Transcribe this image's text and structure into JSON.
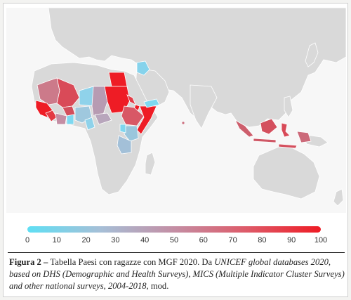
{
  "map": {
    "land_color": "#d9d9d9",
    "ocean_color": "#f7f7f7",
    "scale_low_color": "#5fdff4",
    "scale_high_color": "#ee1c25",
    "legend_ticks": [
      "0",
      "10",
      "20",
      "30",
      "40",
      "50",
      "60",
      "70",
      "80",
      "90",
      "100"
    ],
    "legend_min": 0,
    "legend_max": 100
  },
  "caption": {
    "label": "Figura 2 – ",
    "text1": "Tabella Paesi con ragazze con MGF 2020. Da ",
    "italic1": "UNICEF global databases 2020, based on DHS (Demographic and Health Surveys), MICS (Multiple Indicator Cluster Surveys) and other national surveys, 2004-2018",
    "text2": ", mod."
  }
}
